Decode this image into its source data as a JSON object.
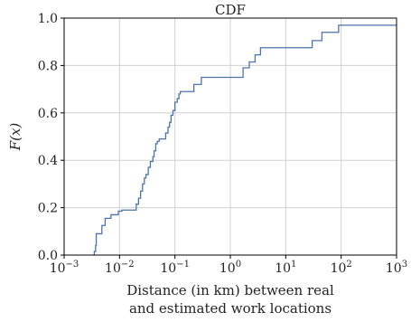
{
  "chart_data": {
    "type": "line",
    "title": "CDF",
    "xlabel": [
      "Distance (in km) between real",
      "and estimated work locations"
    ],
    "ylabel": "F(x)",
    "x_scale": "log",
    "xlim": [
      0.001,
      1000
    ],
    "ylim": [
      0,
      1
    ],
    "grid": true,
    "line_color": "#4c72b0",
    "x_ticks": [
      {
        "value": 0.001,
        "base": "10",
        "exp": "−3"
      },
      {
        "value": 0.01,
        "base": "10",
        "exp": "−2"
      },
      {
        "value": 0.1,
        "base": "10",
        "exp": "−1"
      },
      {
        "value": 1,
        "base": "10",
        "exp": "0"
      },
      {
        "value": 10,
        "base": "10",
        "exp": "1"
      },
      {
        "value": 100,
        "base": "10",
        "exp": "2"
      },
      {
        "value": 1000,
        "base": "10",
        "exp": "3"
      }
    ],
    "y_ticks": [
      {
        "value": 0.0,
        "label": "0.0"
      },
      {
        "value": 0.2,
        "label": "0.2"
      },
      {
        "value": 0.4,
        "label": "0.4"
      },
      {
        "value": 0.6,
        "label": "0.6"
      },
      {
        "value": 0.8,
        "label": "0.8"
      },
      {
        "value": 1.0,
        "label": "1.0"
      }
    ],
    "series": [
      {
        "drawstyle": "steps-post",
        "x": [
          0.0035,
          0.0037,
          0.0038,
          0.0048,
          0.0055,
          0.007,
          0.0095,
          0.011,
          0.02,
          0.022,
          0.024,
          0.026,
          0.028,
          0.03,
          0.033,
          0.036,
          0.04,
          0.042,
          0.045,
          0.048,
          0.052,
          0.068,
          0.075,
          0.08,
          0.085,
          0.092,
          0.1,
          0.11,
          0.118,
          0.125,
          0.13,
          0.15,
          0.22,
          0.3,
          0.32,
          1.7,
          2.2,
          2.8,
          3.5,
          30.0,
          45.0,
          90.0
        ],
        "y": [
          0.015,
          0.04,
          0.09,
          0.125,
          0.155,
          0.17,
          0.185,
          0.19,
          0.215,
          0.24,
          0.27,
          0.3,
          0.325,
          0.34,
          0.37,
          0.395,
          0.415,
          0.44,
          0.47,
          0.48,
          0.49,
          0.515,
          0.54,
          0.56,
          0.59,
          0.61,
          0.645,
          0.66,
          0.68,
          0.69,
          0.69,
          0.69,
          0.72,
          0.75,
          0.75,
          0.79,
          0.815,
          0.845,
          0.875,
          0.905,
          0.94,
          0.97
        ]
      }
    ]
  }
}
